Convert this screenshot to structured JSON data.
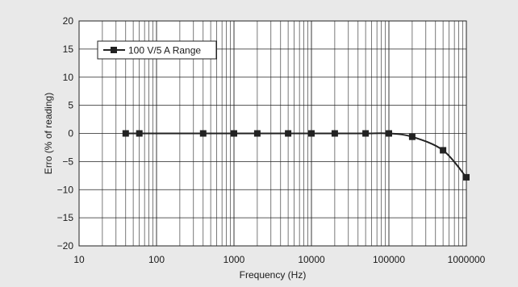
{
  "chart_data": {
    "type": "line",
    "title": "",
    "xlabel": "Frequency (Hz)",
    "ylabel": "Erro (% of reading)",
    "xscale": "log",
    "xlim": [
      10,
      1000000
    ],
    "ylim": [
      -20,
      20
    ],
    "x_ticks": [
      "10",
      "100",
      "1000",
      "10000",
      "100000",
      "1000000"
    ],
    "y_ticks": [
      "20",
      "15",
      "10",
      "5",
      "0",
      "−5",
      "−10",
      "−15",
      "−20"
    ],
    "grid": true,
    "legend_position": "top-left",
    "series": [
      {
        "name": "100 V/5 A Range",
        "color": "#222222",
        "marker": "square",
        "x": [
          40,
          60,
          400,
          1000,
          2000,
          5000,
          10000,
          20000,
          50000,
          100000,
          200000,
          500000,
          1000000
        ],
        "y": [
          0,
          0,
          0,
          0,
          0,
          0,
          0,
          0,
          0,
          0,
          -0.6,
          -3,
          -7.8
        ]
      }
    ]
  }
}
